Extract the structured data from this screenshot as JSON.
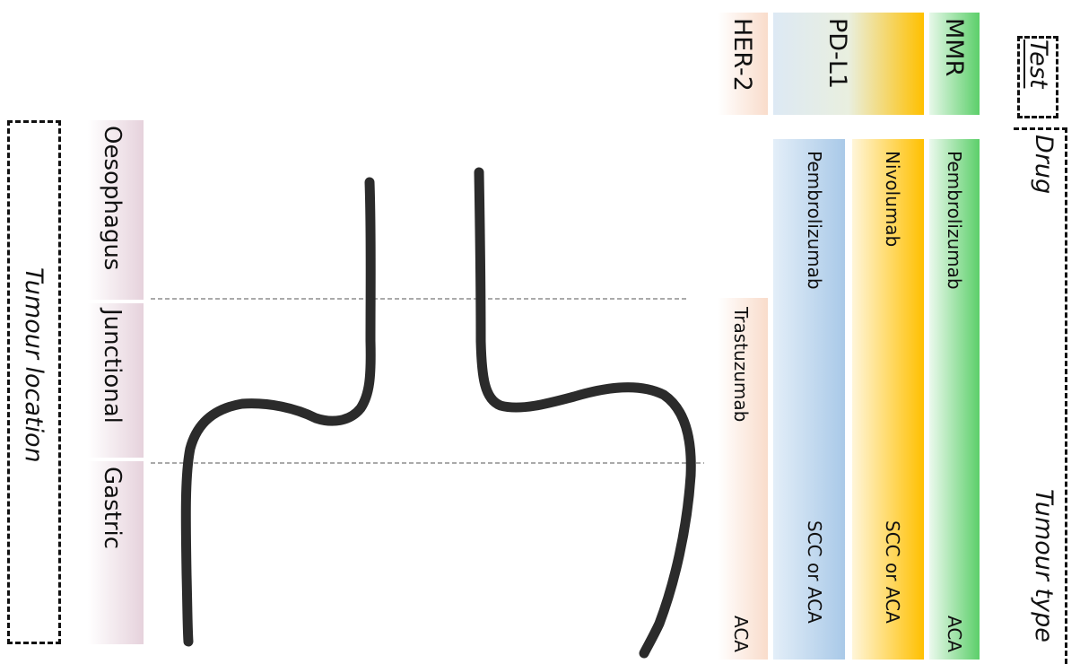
{
  "headers": {
    "test": "Test",
    "drug": "Drug",
    "tumour_type": "Tumour type",
    "tumour_location": "Tumour location"
  },
  "tests": [
    {
      "name": "MMR",
      "drug": "Pembrolizumab",
      "tumour_type": "ACA",
      "color": "#5ccf6a"
    },
    {
      "name": "PD-L1",
      "drug": "Nivolumab",
      "tumour_type": "SCC or ACA",
      "color": "#ffc000"
    },
    {
      "name": "",
      "drug": "Pembrolizumab",
      "tumour_type": "SCC or ACA",
      "color": "#a9c9e8"
    },
    {
      "name": "HER-2",
      "drug": "Trastuzumab",
      "tumour_type": "ACA",
      "color": "#f9dccb"
    }
  ],
  "locations": [
    {
      "name": "Oesophagus",
      "color": "#e6d2dc"
    },
    {
      "name": "Junctional",
      "color": "#e6d2dc"
    },
    {
      "name": "Gastric",
      "color": "#e6d2dc"
    }
  ]
}
